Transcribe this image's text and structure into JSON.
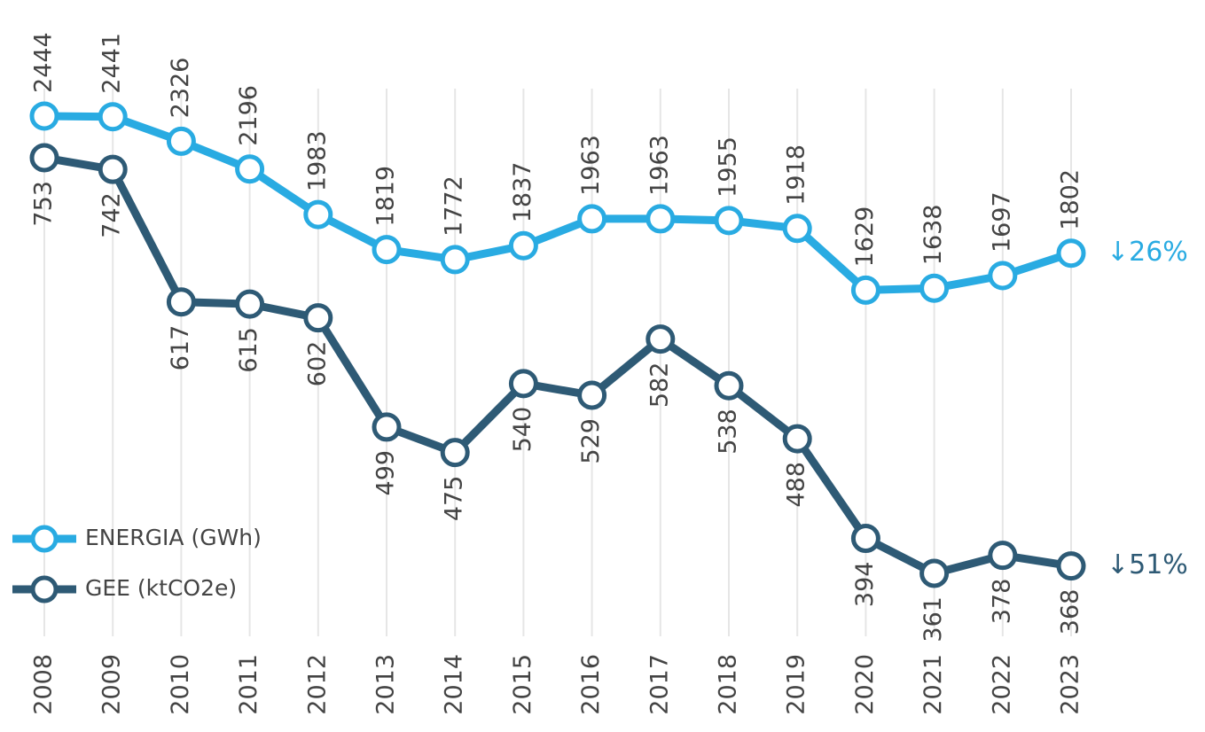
{
  "chart_data": {
    "type": "line",
    "categories": [
      "2008",
      "2009",
      "2010",
      "2011",
      "2012",
      "2013",
      "2014",
      "2015",
      "2016",
      "2017",
      "2018",
      "2019",
      "2020",
      "2021",
      "2022",
      "2023"
    ],
    "series": [
      {
        "name": "ENERGIA (GWh)",
        "color": "#29abe2",
        "values": [
          2444,
          2441,
          2326,
          2196,
          1983,
          1819,
          1772,
          1837,
          1963,
          1963,
          1955,
          1918,
          1629,
          1638,
          1697,
          1802
        ]
      },
      {
        "name": "GEE (ktCO2e)",
        "color": "#2e5a75",
        "axis": "y2",
        "values": [
          753,
          742,
          617,
          615,
          602,
          499,
          475,
          540,
          529,
          582,
          538,
          488,
          394,
          361,
          378,
          368
        ]
      }
    ],
    "ylim": [
      0,
      2780
    ],
    "y2lim": [
      300,
      860
    ],
    "grid": true,
    "legend": "lower left",
    "annotations": [
      {
        "text": "↓26%",
        "color": "#29abe2"
      },
      {
        "text": "↓51%",
        "color": "#2e5a75"
      }
    ]
  }
}
